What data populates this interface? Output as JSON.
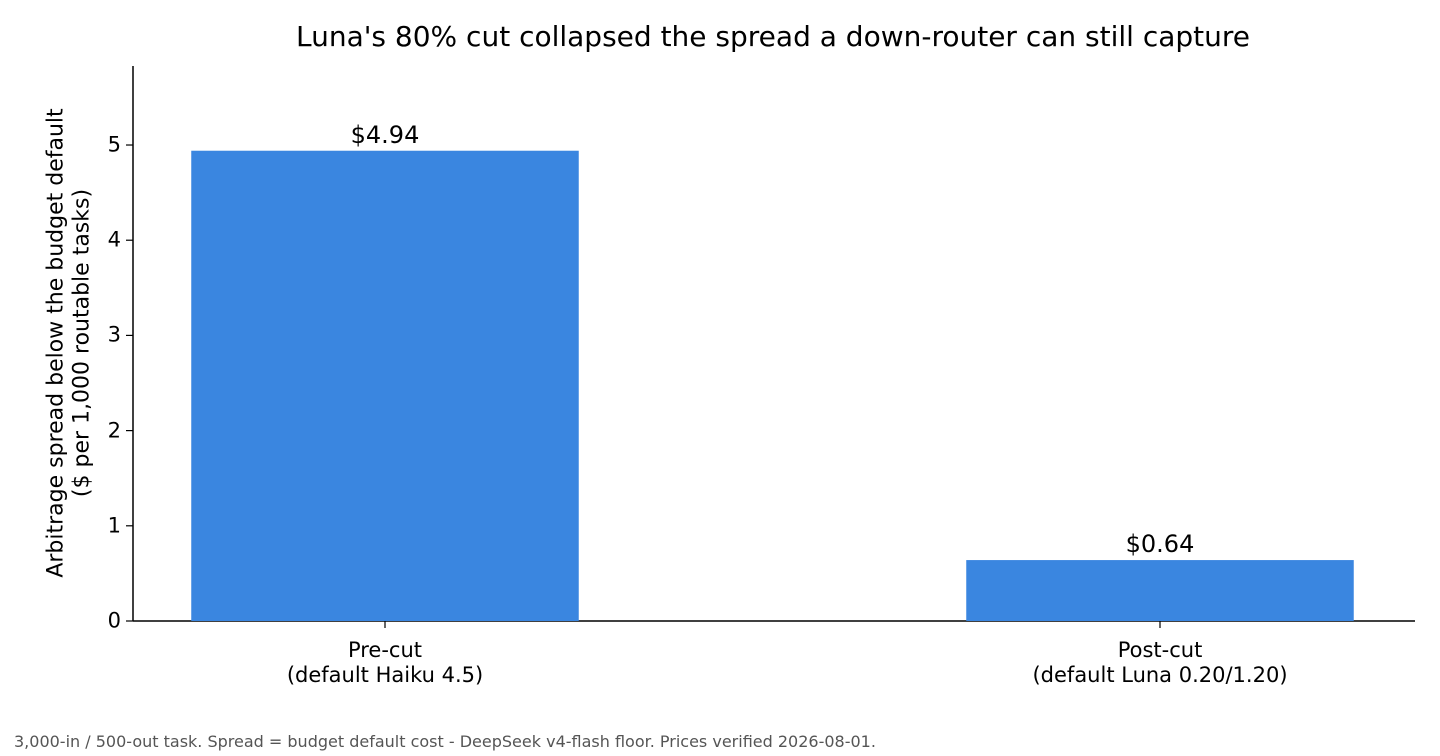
{
  "chart_data": {
    "type": "bar",
    "title": "Luna's 80% cut collapsed the spread a down-router can still capture",
    "y_label": "Arbitrage spread below the budget default\n($ per 1,000 routable tasks)",
    "categories": [
      "Pre-cut\n(default Haiku 4.5)",
      "Post-cut\n(default Luna 0.20/1.20)"
    ],
    "values": [
      4.94,
      0.64
    ],
    "value_labels": [
      "$4.94",
      "$0.64"
    ],
    "color": "#3a86e0",
    "ylim": [
      0,
      5.83
    ],
    "yticks": [
      0,
      1,
      2,
      3,
      4,
      5
    ],
    "grid": false,
    "footnote": "3,000-in / 500-out task. Spread = budget default cost - DeepSeek v4-flash floor. Prices verified 2026-08-01."
  }
}
